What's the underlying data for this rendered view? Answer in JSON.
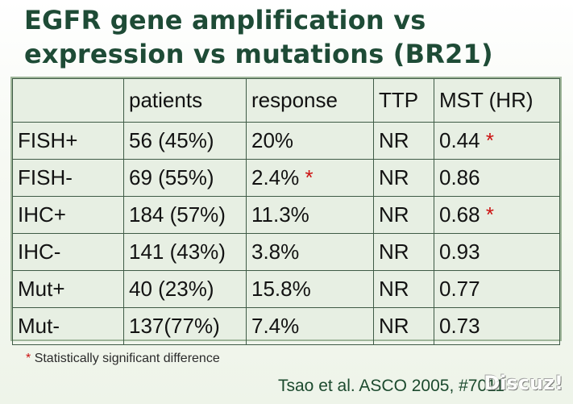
{
  "title_lines": [
    "EGFR gene amplification vs",
    "expression vs mutations (BR21)"
  ],
  "table": {
    "headers": [
      "",
      "patients",
      "response",
      "TTP",
      "MST (HR)"
    ],
    "rows": [
      {
        "label": "FISH+",
        "patients": "56 (45%)",
        "response": "20%",
        "ttp": "NR",
        "mst": "0.44"
      },
      {
        "label": "FISH-",
        "patients": "69 (55%)",
        "response": "2.4%",
        "ttp": "NR",
        "mst": "0.86"
      },
      {
        "label": "IHC+",
        "patients": "184 (57%)",
        "response": "11.3%",
        "ttp": "NR",
        "mst": "0.68"
      },
      {
        "label": "IHC-",
        "patients": "141 (43%)",
        "response": "3.8%",
        "ttp": "NR",
        "mst": "0.93"
      },
      {
        "label": "Mut+",
        "patients": "40 (23%)",
        "response": "15.8%",
        "ttp": "NR",
        "mst": "0.77"
      },
      {
        "label": "Mut-",
        "patients": "137(77%)",
        "response": "7.4%",
        "ttp": "NR",
        "mst": "0.73"
      }
    ],
    "significance_marker": "*"
  },
  "footnote": {
    "marker": "*",
    "text": "Statistically significant difference"
  },
  "citation": "Tsao et al. ASCO 2005, #7011",
  "watermark": "Discuz!",
  "colors": {
    "title": "#1e4b36",
    "table_bg": "#e7efe3",
    "marker": "#cc1111"
  }
}
